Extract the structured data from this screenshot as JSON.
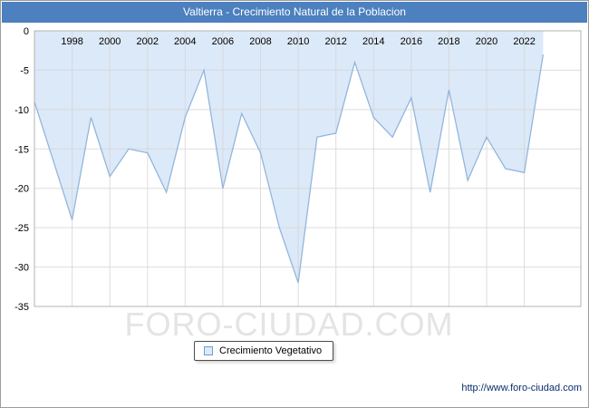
{
  "window": {
    "title": "Valtierra - Crecimiento Natural de la Poblacion"
  },
  "watermark": "FORO-CIUDAD.COM",
  "legend": {
    "label": "Crecimiento Vegetativo"
  },
  "footer": {
    "url": "http://www.foro-ciudad.com"
  },
  "colors": {
    "title_bg": "#4c80be",
    "area_fill": "#dce9f8",
    "area_stroke": "#93b6dc",
    "grid": "#d4d4d4",
    "plot_border": "#b3b3b3",
    "tick_text": "#000000",
    "watermark": "#e4e4e4"
  },
  "chart_data": {
    "type": "area",
    "title": "Valtierra - Crecimiento Natural de la Poblacion",
    "x": [
      1996,
      1997,
      1998,
      1999,
      2000,
      2001,
      2002,
      2003,
      2004,
      2005,
      2006,
      2007,
      2008,
      2009,
      2010,
      2011,
      2012,
      2013,
      2014,
      2015,
      2016,
      2017,
      2018,
      2019,
      2020,
      2021,
      2022,
      2023
    ],
    "series": [
      {
        "name": "Crecimiento Vegetativo",
        "values": [
          -9,
          -16.5,
          -24,
          -11,
          -18.5,
          -15,
          -15.5,
          -20.5,
          -11,
          -5,
          -20,
          -10.5,
          -15.5,
          -25,
          -32,
          -13.5,
          -13,
          -4,
          -11,
          -13.5,
          -8.5,
          -20.5,
          -7.5,
          -19,
          -13.5,
          -17.5,
          -18,
          -3
        ]
      }
    ],
    "ylim": [
      -35,
      0
    ],
    "yticks": [
      0,
      -5,
      -10,
      -15,
      -20,
      -25,
      -30,
      -35
    ],
    "xticks": [
      1998,
      2000,
      2002,
      2004,
      2006,
      2008,
      2010,
      2012,
      2014,
      2016,
      2018,
      2020,
      2022
    ],
    "x_range": [
      1996,
      2025
    ],
    "grid": true,
    "legend_position": "bottom",
    "xlabel": "",
    "ylabel": ""
  }
}
